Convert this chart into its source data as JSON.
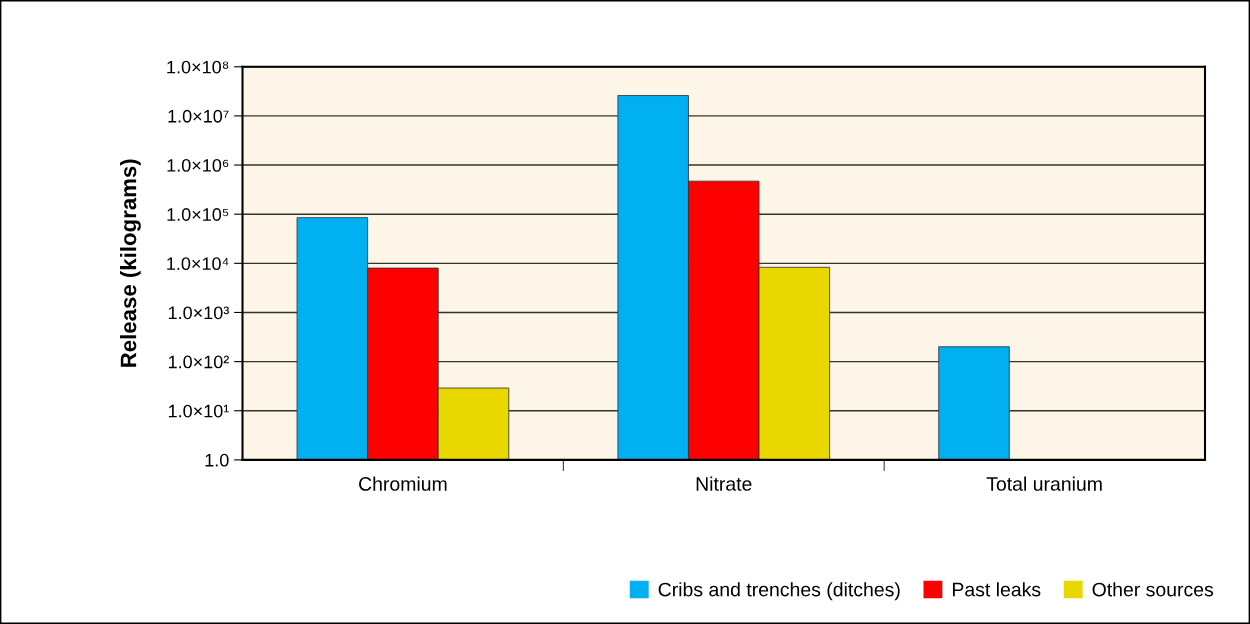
{
  "chart_data": {
    "type": "bar",
    "ylabel": "Release (kilograms)",
    "categories": [
      "Chromium",
      "Nitrate",
      "Total uranium"
    ],
    "series": [
      {
        "name": "Cribs and trenches (ditches)",
        "color": "#00b0f0",
        "values": [
          85000,
          26000000,
          200
        ]
      },
      {
        "name": "Past leaks",
        "color": "#ff0000",
        "values": [
          8000,
          470000,
          null
        ]
      },
      {
        "name": "Other sources",
        "color": "#e8d800",
        "values": [
          28,
          8300,
          null
        ]
      }
    ],
    "log": true,
    "ylim": [
      1,
      100000000
    ],
    "yticks": [
      {
        "value": 1,
        "label": "1.0"
      },
      {
        "value": 10,
        "label": "1.0×10¹"
      },
      {
        "value": 100,
        "label": "1.0×10²"
      },
      {
        "value": 1000,
        "label": "1.0×10³"
      },
      {
        "value": 10000,
        "label": "1.0×10⁴"
      },
      {
        "value": 100000,
        "label": "1.0×10⁵"
      },
      {
        "value": 1000000,
        "label": "1.0×10⁶"
      },
      {
        "value": 10000000,
        "label": "1.0×10⁷"
      },
      {
        "value": 100000000,
        "label": "1.0×10⁸"
      }
    ],
    "grid": "y",
    "legend": "bottom right"
  }
}
